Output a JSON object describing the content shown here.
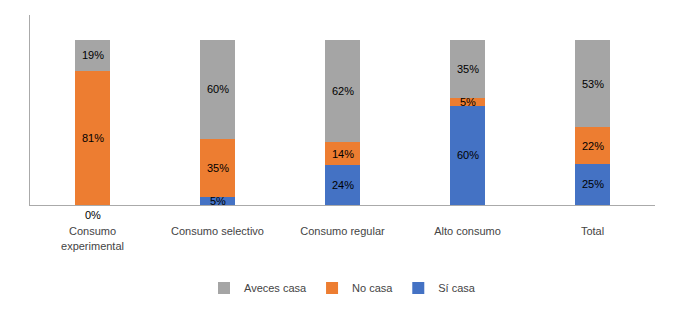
{
  "chart_data": {
    "type": "bar",
    "stacked": true,
    "categories": [
      "Consumo\nexperimental",
      "Consumo selectivo",
      "Consumo regular",
      "Alto consumo",
      "Total"
    ],
    "series": [
      {
        "name": "Sí casa",
        "color": "#4472c4",
        "values": [
          0,
          5,
          24,
          60,
          25
        ],
        "value_labels": [
          "0%",
          "5%",
          "24%",
          "60%",
          "25%"
        ]
      },
      {
        "name": "No casa",
        "color": "#ed7d31",
        "values": [
          81,
          35,
          14,
          5,
          22
        ],
        "value_labels": [
          "81%",
          "35%",
          "14%",
          "5%",
          "22%"
        ]
      },
      {
        "name": "Aveces casa",
        "color": "#a5a5a5",
        "values": [
          19,
          60,
          62,
          35,
          53
        ],
        "value_labels": [
          "19%",
          "60%",
          "62%",
          "35%",
          "53%"
        ]
      }
    ],
    "ylim": [
      0,
      115
    ],
    "data_labels": true,
    "tick_labels": "x",
    "grid": false,
    "legend": "bottom"
  }
}
